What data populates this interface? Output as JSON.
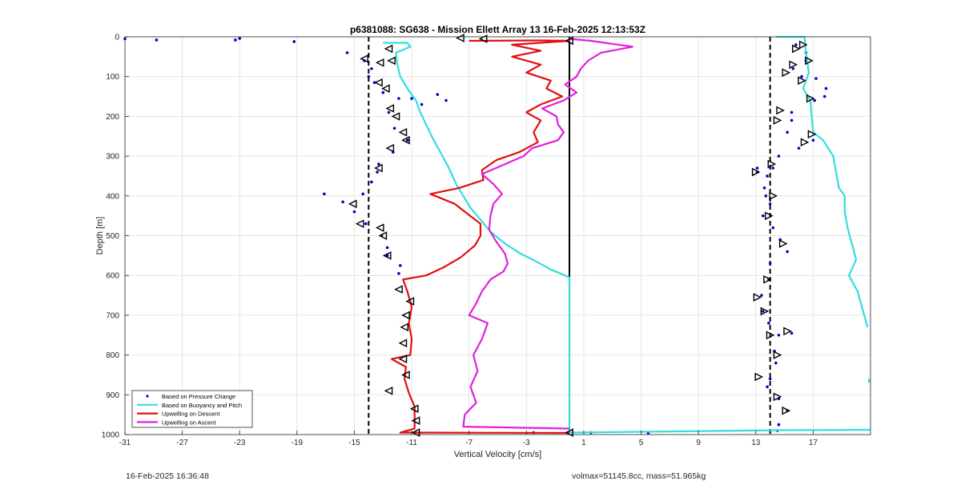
{
  "chart_data": {
    "type": "line",
    "title": "p6381088: SG638 - Mission Ellett Array 13 16-Feb-2025 12:13:53Z",
    "xlabel": "Vertical Velocity [cm/s]",
    "ylabel": "Depth [m]",
    "xlim": [
      -31,
      21
    ],
    "ylim": [
      0,
      1000
    ],
    "y_reversed": true,
    "xticks": [
      -31,
      -27,
      -23,
      -19,
      -15,
      -11,
      -7,
      -3,
      1,
      5,
      9,
      13,
      17
    ],
    "yticks": [
      0,
      100,
      200,
      300,
      400,
      500,
      600,
      700,
      800,
      900,
      1000
    ],
    "grid": true,
    "legend_location": "bottom-left",
    "reference_lines": [
      {
        "x": -14,
        "style": "dashed",
        "color": "#000000"
      },
      {
        "x": 14,
        "style": "dashed",
        "color": "#000000"
      },
      {
        "x": 0,
        "style": "solid",
        "color": "#000000",
        "y_range": [
          0,
          1000
        ]
      }
    ],
    "series": [
      {
        "name": "Based on Pressure Change",
        "style": "points",
        "color": "#0000d0",
        "points": [
          [
            -31,
            5
          ],
          [
            -28.8,
            8
          ],
          [
            -23.3,
            8
          ],
          [
            -23,
            4
          ],
          [
            -19.2,
            12
          ],
          [
            -15.5,
            40
          ],
          [
            -14.3,
            60
          ],
          [
            -13.8,
            80
          ],
          [
            -14,
            100
          ],
          [
            -13.6,
            115
          ],
          [
            -13,
            140
          ],
          [
            -11.9,
            155
          ],
          [
            -12.6,
            190
          ],
          [
            -12.2,
            230
          ],
          [
            -11.3,
            260
          ],
          [
            -12.3,
            290
          ],
          [
            -13.3,
            320
          ],
          [
            -13.4,
            340
          ],
          [
            -13.8,
            365
          ],
          [
            -14.4,
            395
          ],
          [
            -17.1,
            395
          ],
          [
            -15.8,
            415
          ],
          [
            -15,
            440
          ],
          [
            -14.2,
            470
          ],
          [
            -13.1,
            500
          ],
          [
            -12.7,
            530
          ],
          [
            -12.7,
            550
          ],
          [
            -11.8,
            575
          ],
          [
            -11.9,
            595
          ],
          [
            -11,
            155
          ],
          [
            -9.2,
            145
          ],
          [
            -8.6,
            160
          ],
          [
            -10.3,
            170
          ],
          [
            13.1,
            330
          ],
          [
            13.1,
            340
          ],
          [
            13.8,
            350
          ],
          [
            13.6,
            380
          ],
          [
            13.7,
            400
          ],
          [
            14,
            420
          ],
          [
            13.5,
            450
          ],
          [
            14.2,
            480
          ],
          [
            14.7,
            510
          ],
          [
            15.2,
            540
          ],
          [
            14,
            570
          ],
          [
            13.9,
            610
          ],
          [
            13.4,
            650
          ],
          [
            13.5,
            690
          ],
          [
            13.9,
            720
          ],
          [
            14.6,
            750
          ],
          [
            15.5,
            745
          ],
          [
            14.3,
            790
          ],
          [
            14.4,
            820
          ],
          [
            14,
            860
          ],
          [
            13.8,
            880
          ],
          [
            14.6,
            910
          ],
          [
            15.2,
            940
          ],
          [
            14.6,
            975
          ],
          [
            14.5,
            990
          ],
          [
            15.8,
            20
          ],
          [
            16.5,
            40
          ],
          [
            16.5,
            60
          ],
          [
            15.6,
            80
          ],
          [
            16.2,
            100
          ],
          [
            17.2,
            105
          ],
          [
            17.9,
            130
          ],
          [
            17.1,
            160
          ],
          [
            17.8,
            150
          ],
          [
            15.5,
            190
          ],
          [
            15.5,
            210
          ],
          [
            15.2,
            240
          ],
          [
            17,
            260
          ],
          [
            16,
            280
          ],
          [
            14.6,
            300
          ],
          [
            14.2,
            330
          ],
          [
            1.5,
            995
          ],
          [
            5.5,
            996
          ],
          [
            -2.5,
            995
          ]
        ]
      },
      {
        "name": "Based on Buoyancy and Pitch",
        "style": "line",
        "color": "#33dde0",
        "segments": [
          [
            [
              -13,
              15
            ],
            [
              -11.3,
              15
            ],
            [
              -11.1,
              25
            ],
            [
              -12.1,
              40
            ],
            [
              -12,
              70
            ],
            [
              -11.8,
              100
            ],
            [
              -11.3,
              130
            ],
            [
              -10.7,
              160
            ],
            [
              -10.4,
              190
            ],
            [
              -10,
              220
            ],
            [
              -9.6,
              250
            ],
            [
              -9,
              290
            ],
            [
              -8.4,
              330
            ],
            [
              -7.9,
              370
            ],
            [
              -7.4,
              400
            ],
            [
              -6.9,
              430
            ],
            [
              -6.2,
              460
            ],
            [
              -5.5,
              490
            ],
            [
              -4.5,
              520
            ],
            [
              -3.4,
              545
            ],
            [
              -2.3,
              565
            ],
            [
              -1.3,
              585
            ],
            [
              -0.3,
              600
            ],
            [
              0,
              605
            ],
            [
              0,
              1000
            ]
          ],
          [
            [
              0,
              995
            ],
            [
              5,
              993
            ],
            [
              10,
              991
            ],
            [
              15,
              989
            ],
            [
              21,
              988
            ]
          ],
          [
            [
              14.4,
              0
            ],
            [
              16.4,
              0
            ],
            [
              16.5,
              40
            ],
            [
              16.7,
              90
            ],
            [
              16.3,
              130
            ],
            [
              16.8,
              160
            ],
            [
              16.9,
              200
            ],
            [
              17,
              240
            ],
            [
              17.7,
              260
            ],
            [
              18.4,
              300
            ],
            [
              18.6,
              340
            ],
            [
              18.8,
              380
            ],
            [
              19.2,
              400
            ],
            [
              19.2,
              440
            ],
            [
              19.4,
              480
            ],
            [
              19.7,
              520
            ],
            [
              20,
              560
            ],
            [
              19.5,
              600
            ],
            [
              20.1,
              640
            ],
            [
              20.4,
              680
            ],
            [
              20.8,
              730
            ]
          ],
          [
            [
              21,
              800
            ],
            [
              21,
              800
            ]
          ],
          [
            [
              20.9,
              860
            ],
            [
              20.9,
              870
            ]
          ]
        ]
      },
      {
        "name": "Upwelling on Descent",
        "style": "line",
        "color": "#e01010",
        "segments": [
          [
            [
              -7,
              10
            ],
            [
              -2,
              9
            ],
            [
              0,
              10
            ],
            [
              -4,
              20
            ],
            [
              -2,
              35
            ],
            [
              -4,
              50
            ],
            [
              -2,
              70
            ],
            [
              -3,
              90
            ],
            [
              -1.3,
              110
            ],
            [
              -1.6,
              130
            ],
            [
              -0.5,
              150
            ],
            [
              -2,
              170
            ],
            [
              -3,
              190
            ],
            [
              -2,
              210
            ],
            [
              -2.5,
              240
            ],
            [
              -2.2,
              265
            ],
            [
              -3.5,
              290
            ],
            [
              -5.1,
              310
            ],
            [
              -6.1,
              335
            ],
            [
              -6,
              360
            ],
            [
              -7.7,
              380
            ],
            [
              -9.7,
              395
            ],
            [
              -8,
              420
            ],
            [
              -7.1,
              445
            ],
            [
              -6.2,
              470
            ],
            [
              -6.2,
              500
            ],
            [
              -6.6,
              525
            ],
            [
              -7.6,
              555
            ],
            [
              -8.8,
              580
            ],
            [
              -10,
              600
            ],
            [
              -11.6,
              610
            ],
            [
              -11.3,
              640
            ],
            [
              -11,
              680
            ],
            [
              -11.2,
              720
            ],
            [
              -11,
              760
            ],
            [
              -11.1,
              800
            ],
            [
              -12.4,
              810
            ],
            [
              -11.4,
              830
            ],
            [
              -11.5,
              860
            ],
            [
              -11.2,
              895
            ],
            [
              -10.8,
              930
            ],
            [
              -10.8,
              960
            ],
            [
              -10.8,
              985
            ],
            [
              -11.8,
              995
            ],
            [
              0,
              996
            ]
          ]
        ]
      },
      {
        "name": "Upwelling on Ascent",
        "style": "line",
        "color": "#e020e0",
        "segments": [
          [
            [
              0,
              985
            ],
            [
              -7.4,
              980
            ],
            [
              -7.3,
              950
            ],
            [
              -6.5,
              920
            ],
            [
              -6.9,
              880
            ],
            [
              -6.4,
              840
            ],
            [
              -6.7,
              800
            ],
            [
              -6.1,
              760
            ],
            [
              -5.7,
              720
            ],
            [
              -7,
              700
            ],
            [
              -6.5,
              670
            ],
            [
              -6.1,
              640
            ],
            [
              -5.5,
              610
            ],
            [
              -4.6,
              590
            ],
            [
              -4.3,
              570
            ],
            [
              -4.5,
              545
            ],
            [
              -5.1,
              515
            ],
            [
              -5.6,
              485
            ],
            [
              -5.5,
              450
            ],
            [
              -5.3,
              420
            ],
            [
              -4.7,
              395
            ],
            [
              -5.3,
              370
            ],
            [
              -6.1,
              345
            ],
            [
              -4.8,
              325
            ],
            [
              -3.2,
              300
            ],
            [
              -2.6,
              280
            ],
            [
              -0.8,
              260
            ],
            [
              -0.4,
              240
            ],
            [
              -0.8,
              220
            ],
            [
              -0.9,
              200
            ],
            [
              -1.9,
              180
            ],
            [
              -0.4,
              160
            ],
            [
              0.5,
              140
            ],
            [
              -0.3,
              120
            ],
            [
              0.5,
              100
            ],
            [
              0.8,
              80
            ],
            [
              1.3,
              60
            ],
            [
              2.2,
              40
            ],
            [
              4.4,
              25
            ],
            [
              1.5,
              10
            ],
            [
              0,
              5
            ]
          ]
        ]
      }
    ],
    "markers": {
      "descent_triangles": [
        [
          -14.3,
          55
        ],
        [
          -13.2,
          65
        ],
        [
          -12.6,
          30
        ],
        [
          -12.4,
          60
        ],
        [
          -13.3,
          115
        ],
        [
          -12.8,
          130
        ],
        [
          -12.5,
          180
        ],
        [
          -12.1,
          200
        ],
        [
          -11.6,
          240
        ],
        [
          -11.4,
          260
        ],
        [
          -12.5,
          280
        ],
        [
          -13.3,
          330
        ],
        [
          -15.1,
          420
        ],
        [
          -14.6,
          470
        ],
        [
          -13.2,
          480
        ],
        [
          -13,
          500
        ],
        [
          -12.7,
          550
        ],
        [
          -11.9,
          635
        ],
        [
          -11.1,
          665
        ],
        [
          -11.4,
          700
        ],
        [
          -11.5,
          730
        ],
        [
          -11.6,
          770
        ],
        [
          -11.6,
          810
        ],
        [
          -11.4,
          850
        ],
        [
          -12.6,
          890
        ],
        [
          -10.8,
          935
        ],
        [
          -10.7,
          965
        ],
        [
          -10.7,
          995
        ],
        [
          -6,
          5
        ],
        [
          -7.6,
          3
        ],
        [
          0,
          10
        ],
        [
          0,
          995
        ]
      ],
      "ascent_triangles": [
        [
          16.3,
          20
        ],
        [
          15.8,
          30
        ],
        [
          16.7,
          60
        ],
        [
          15.6,
          70
        ],
        [
          15.1,
          90
        ],
        [
          16.2,
          110
        ],
        [
          16.8,
          155
        ],
        [
          14.7,
          185
        ],
        [
          14.5,
          210
        ],
        [
          16.9,
          245
        ],
        [
          16.4,
          265
        ],
        [
          14.1,
          320
        ],
        [
          13,
          340
        ],
        [
          14.2,
          400
        ],
        [
          13.9,
          450
        ],
        [
          14.9,
          520
        ],
        [
          13.8,
          610
        ],
        [
          13.1,
          655
        ],
        [
          13.6,
          690
        ],
        [
          14,
          750
        ],
        [
          15.2,
          740
        ],
        [
          14.5,
          800
        ],
        [
          13.2,
          855
        ],
        [
          14.5,
          905
        ],
        [
          15.1,
          940
        ]
      ]
    }
  },
  "footer": {
    "timestamp": "16-Feb-2025 16:36:48",
    "vehicle_info": "volmax=51145.8cc, mass=51.965kg"
  }
}
